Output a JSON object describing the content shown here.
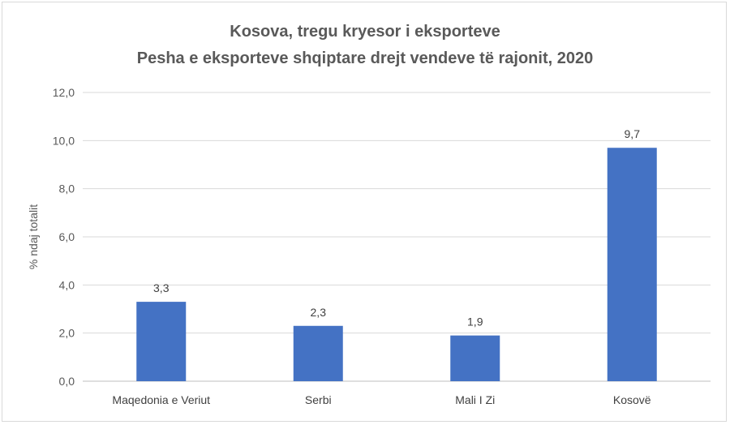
{
  "chart_data": {
    "type": "bar",
    "title": "Kosova, tregu kryesor i eksporteve",
    "subtitle": "Pesha e eksporteve shqiptare drejt vendeve të rajonit, 2020",
    "xlabel": "",
    "ylabel": "% ndaj totalit",
    "categories": [
      "Maqedonia e Veriut",
      "Serbi",
      "Mali I Zi",
      "Kosovë"
    ],
    "values": [
      3.3,
      2.3,
      1.9,
      9.7
    ],
    "data_labels": [
      "3,3",
      "2,3",
      "1,9",
      "9,7"
    ],
    "ylim": [
      0,
      12
    ],
    "y_ticks": [
      0,
      2,
      4,
      6,
      8,
      10,
      12
    ],
    "y_tick_labels": [
      "0,0",
      "2,0",
      "4,0",
      "6,0",
      "8,0",
      "10,0",
      "12,0"
    ],
    "grid": true,
    "legend": "none",
    "colors": {
      "bar": "#4472c4",
      "grid": "#d9d9d9",
      "axis": "#bfbfbf"
    }
  }
}
